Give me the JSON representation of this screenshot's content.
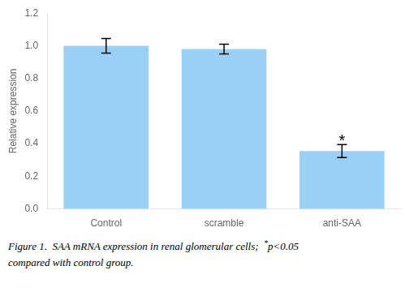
{
  "chart_data": {
    "type": "bar",
    "categories": [
      "Control",
      "scramble",
      "anti-SAA"
    ],
    "values": [
      1.0,
      0.98,
      0.355
    ],
    "errors": [
      0.045,
      0.03,
      0.04
    ],
    "ylabel": "Relative expression",
    "ylim": [
      0,
      1.2
    ],
    "yticks": [
      {
        "value": 0,
        "label": "0.0"
      },
      0.2,
      0.4,
      0.6,
      0.8,
      {
        "value": 1,
        "label": "1.0"
      },
      1.2
    ],
    "grid": false,
    "annotations": [
      {
        "text": "*",
        "x": "anti-SAA"
      }
    ],
    "caption": [
      "Figure 1.  SAA mRNA expression in renal glomerular cells;  ",
      "*",
      "p<0.05",
      "compared with control group."
    ]
  }
}
